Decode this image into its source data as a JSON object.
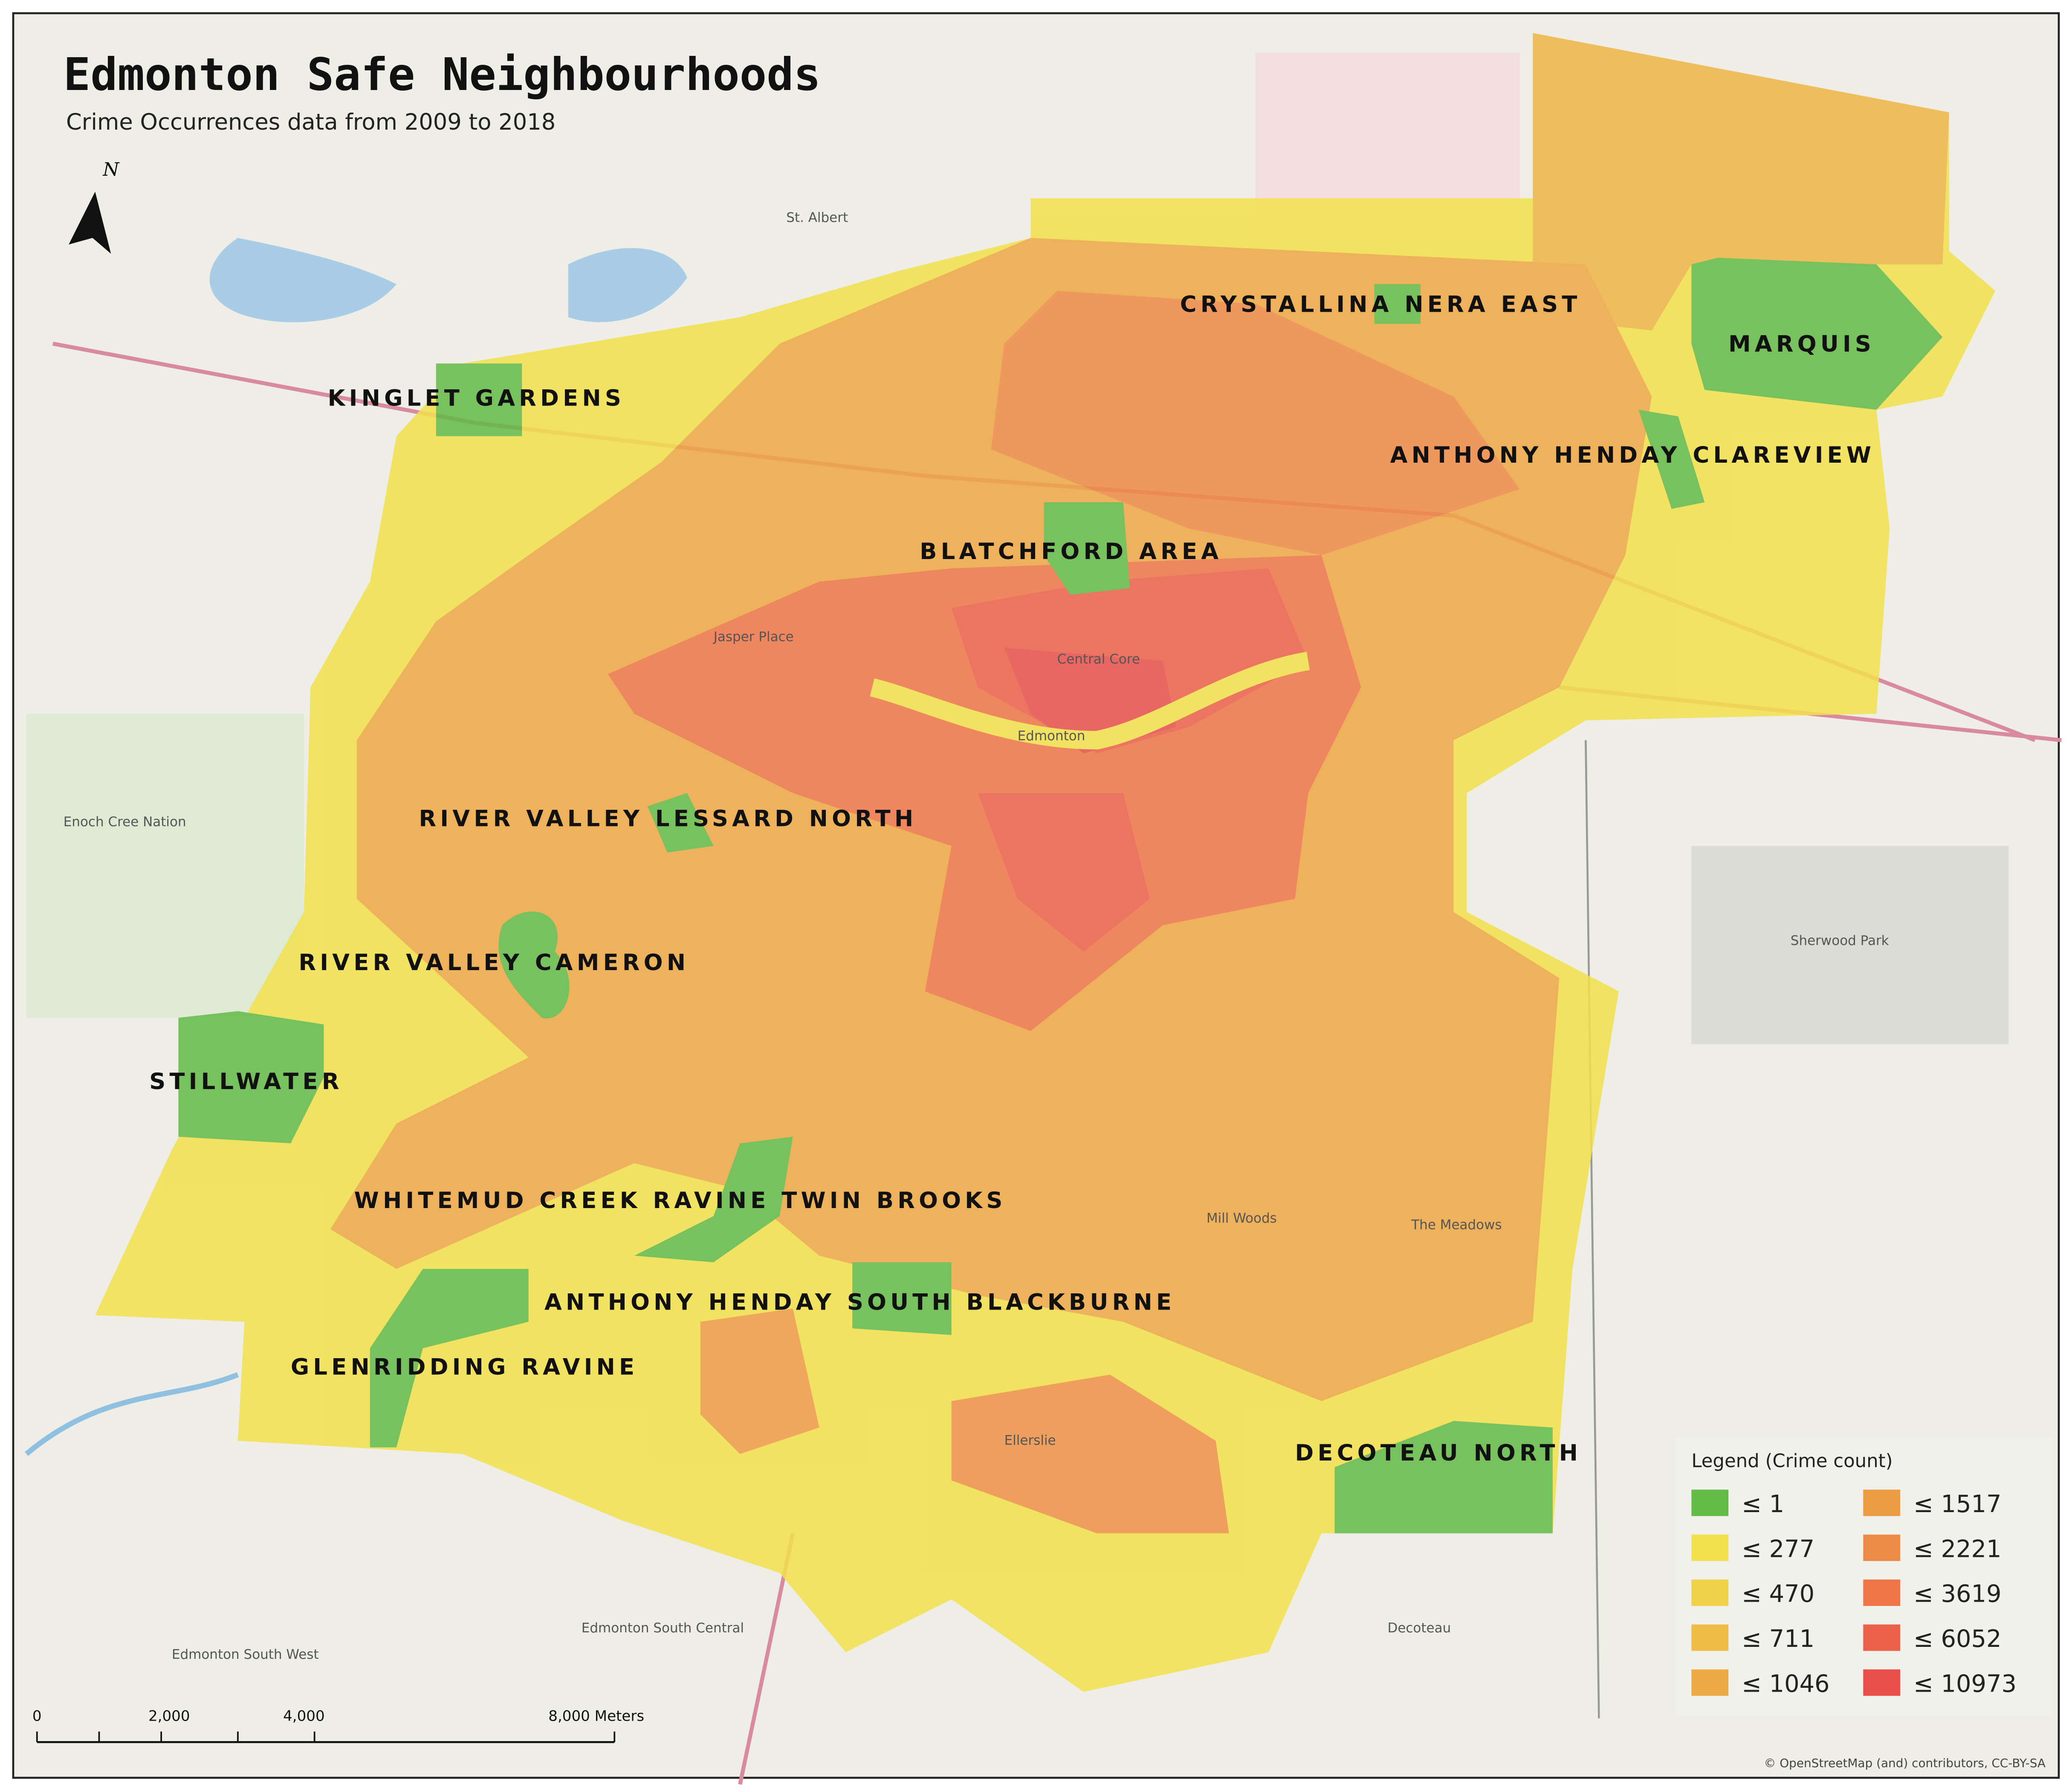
{
  "header": {
    "title": "Edmonton Safe Neighbourhoods",
    "subtitle": "Crime Occurrences data from 2009 to 2018"
  },
  "north_arrow": "N",
  "safe_neighbourhoods": [
    "KINGLET GARDENS",
    "CRYSTALLINA NERA EAST",
    "MARQUIS",
    "ANTHONY HENDAY CLAREVIEW",
    "BLATCHFORD AREA",
    "RIVER VALLEY LESSARD NORTH",
    "RIVER VALLEY CAMERON",
    "STILLWATER",
    "WHITEMUD CREEK RAVINE TWIN BROOKS",
    "ANTHONY HENDAY SOUTH BLACKBURNE",
    "GLENRIDDING RAVINE",
    "DECOTEAU NORTH"
  ],
  "place_labels": [
    "St. Albert",
    "Sherwood Park",
    "Edmonton",
    "Enoch Cree Nation",
    "Edmonton South West",
    "Edmonton South Central",
    "Decoteau",
    "The Meadows",
    "Mill Woods",
    "Ellerslie",
    "Central Core",
    "Jasper Place"
  ],
  "legend": {
    "title": "Legend (Crime count)",
    "items": [
      {
        "label": "≤ 1",
        "color": "#63bb47"
      },
      {
        "label": "≤ 277",
        "color": "#f2e14c"
      },
      {
        "label": "≤ 470",
        "color": "#f0d148"
      },
      {
        "label": "≤ 711",
        "color": "#efbd46"
      },
      {
        "label": "≤ 1046",
        "color": "#eeab45"
      },
      {
        "label": "≤ 1517",
        "color": "#ee9b46"
      },
      {
        "label": "≤ 2221",
        "color": "#ee8a47"
      },
      {
        "label": "≤ 3619",
        "color": "#ee7649"
      },
      {
        "label": "≤ 6052",
        "color": "#ec614a"
      },
      {
        "label": "≤ 10973",
        "color": "#e9504c"
      }
    ]
  },
  "scale_bar": {
    "labels": [
      "0",
      "2,000",
      "4,000",
      "8,000 Meters"
    ]
  },
  "attribution": "© OpenStreetMap (and) contributors, CC-BY-SA"
}
